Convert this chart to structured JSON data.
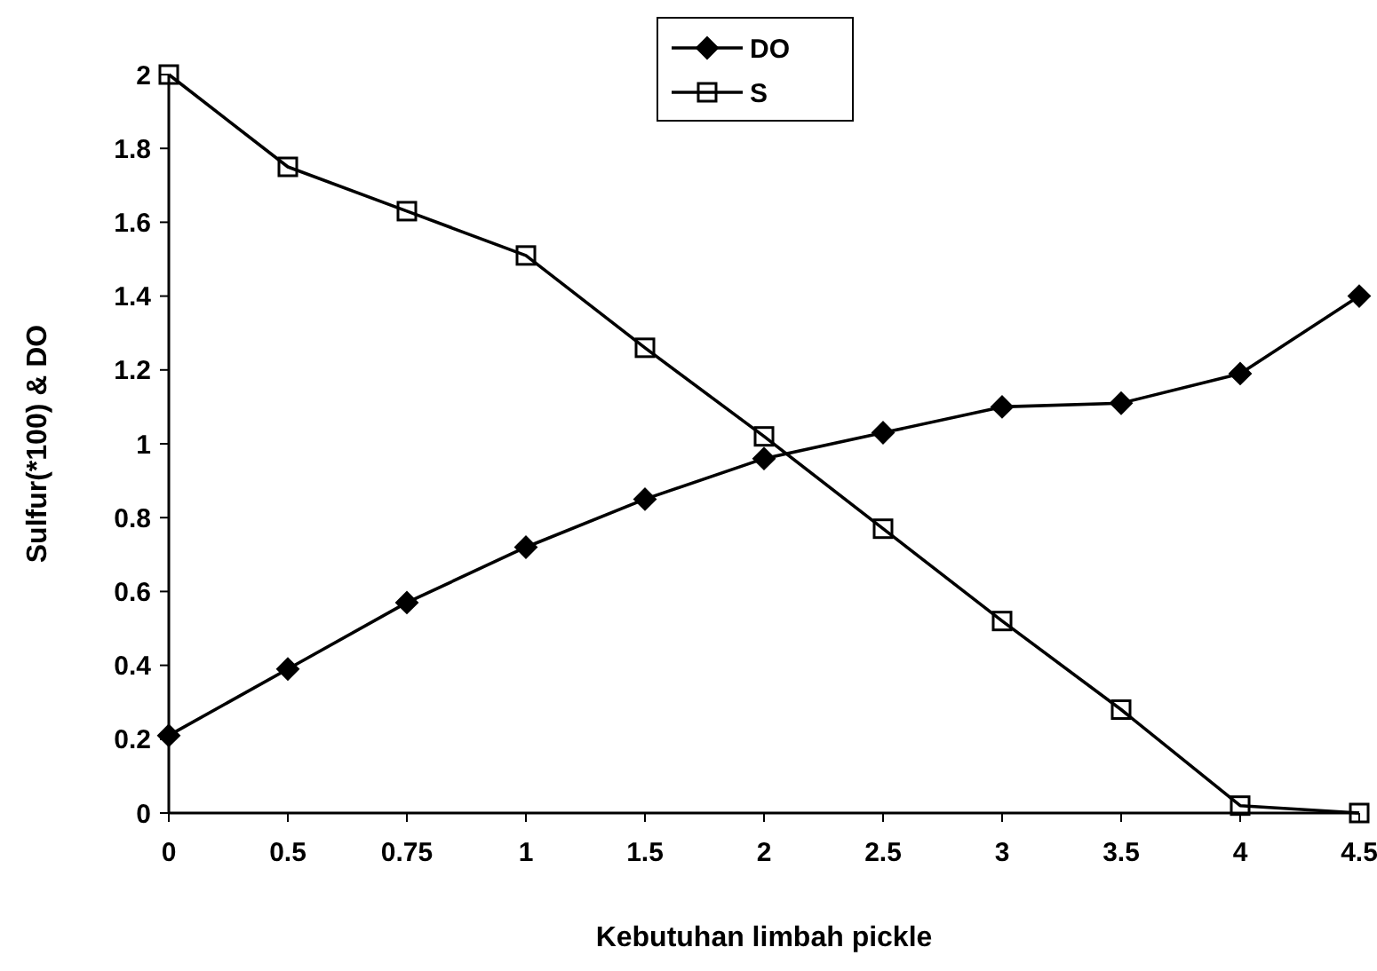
{
  "chart_data": {
    "type": "line",
    "xlabel": "Kebutuhan limbah pickle",
    "ylabel": "Sulfur(*100) & DO",
    "categories": [
      "0",
      "0.5",
      "0.75",
      "1",
      "1.5",
      "2",
      "2.5",
      "3",
      "3.5",
      "4",
      "4.5"
    ],
    "series": [
      {
        "name": "DO",
        "color": "#000000",
        "marker": "diamond",
        "values": [
          0.21,
          0.39,
          0.57,
          0.72,
          0.85,
          0.96,
          1.03,
          1.1,
          1.11,
          1.19,
          1.4
        ]
      },
      {
        "name": "S",
        "color": "#000000",
        "marker": "square",
        "values": [
          2.0,
          1.75,
          1.63,
          1.51,
          1.26,
          1.02,
          0.77,
          0.52,
          0.28,
          0.02,
          0
        ]
      }
    ],
    "ylim": [
      0,
      2
    ],
    "yticks": [
      0,
      0.2,
      0.4,
      0.6,
      0.8,
      1,
      1.2,
      1.4,
      1.6,
      1.8,
      2
    ],
    "legend": "top",
    "line_style": "solid",
    "grid": false
  }
}
